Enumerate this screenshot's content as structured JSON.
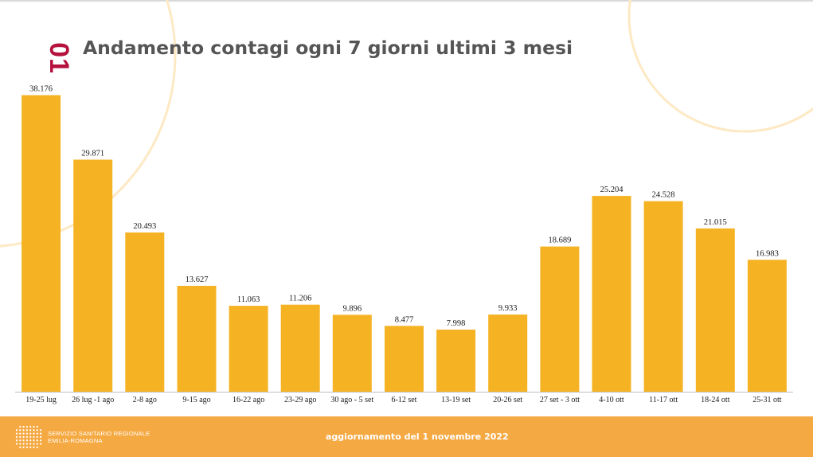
{
  "slide": {
    "number": "01",
    "title": "Andamento contagi ogni 7 giorni ultimi 3 mesi"
  },
  "colors": {
    "bar": "#f5b324",
    "accent": "#b5123e",
    "footer": "#f5a942",
    "deco_circle": "#fde9c4"
  },
  "chart_data": {
    "type": "bar",
    "title": "Andamento contagi ogni 7 giorni ultimi 3 mesi",
    "xlabel": "",
    "ylabel": "",
    "ylim": [
      0,
      40000
    ],
    "grid": false,
    "categories": [
      "19-25 lug",
      "26 lug -1 ago",
      "2-8 ago",
      "9-15 ago",
      "16-22 ago",
      "23-29 ago",
      "30 ago - 5 set",
      "6-12 set",
      "13-19 set",
      "20-26 set",
      "27 set - 3 ott",
      "4-10 ott",
      "11-17 ott",
      "18-24 ott",
      "25-31 ott"
    ],
    "values": [
      38176,
      29871,
      20493,
      13627,
      11063,
      11206,
      9896,
      8477,
      7998,
      9933,
      18689,
      25204,
      24528,
      21015,
      16983
    ],
    "value_labels": [
      "38.176",
      "29.871",
      "20.493",
      "13.627",
      "11.063",
      "11.206",
      "9.896",
      "8.477",
      "7.998",
      "9.933",
      "18.689",
      "25.204",
      "24.528",
      "21.015",
      "16.983"
    ]
  },
  "footer": {
    "org_line1": "SERVIZIO SANITARIO REGIONALE",
    "org_line2": "EMILIA-ROMAGNA",
    "update": "aggiornamento del 1 novembre 2022",
    "logo_icon": "dot-grid-logo-icon"
  }
}
